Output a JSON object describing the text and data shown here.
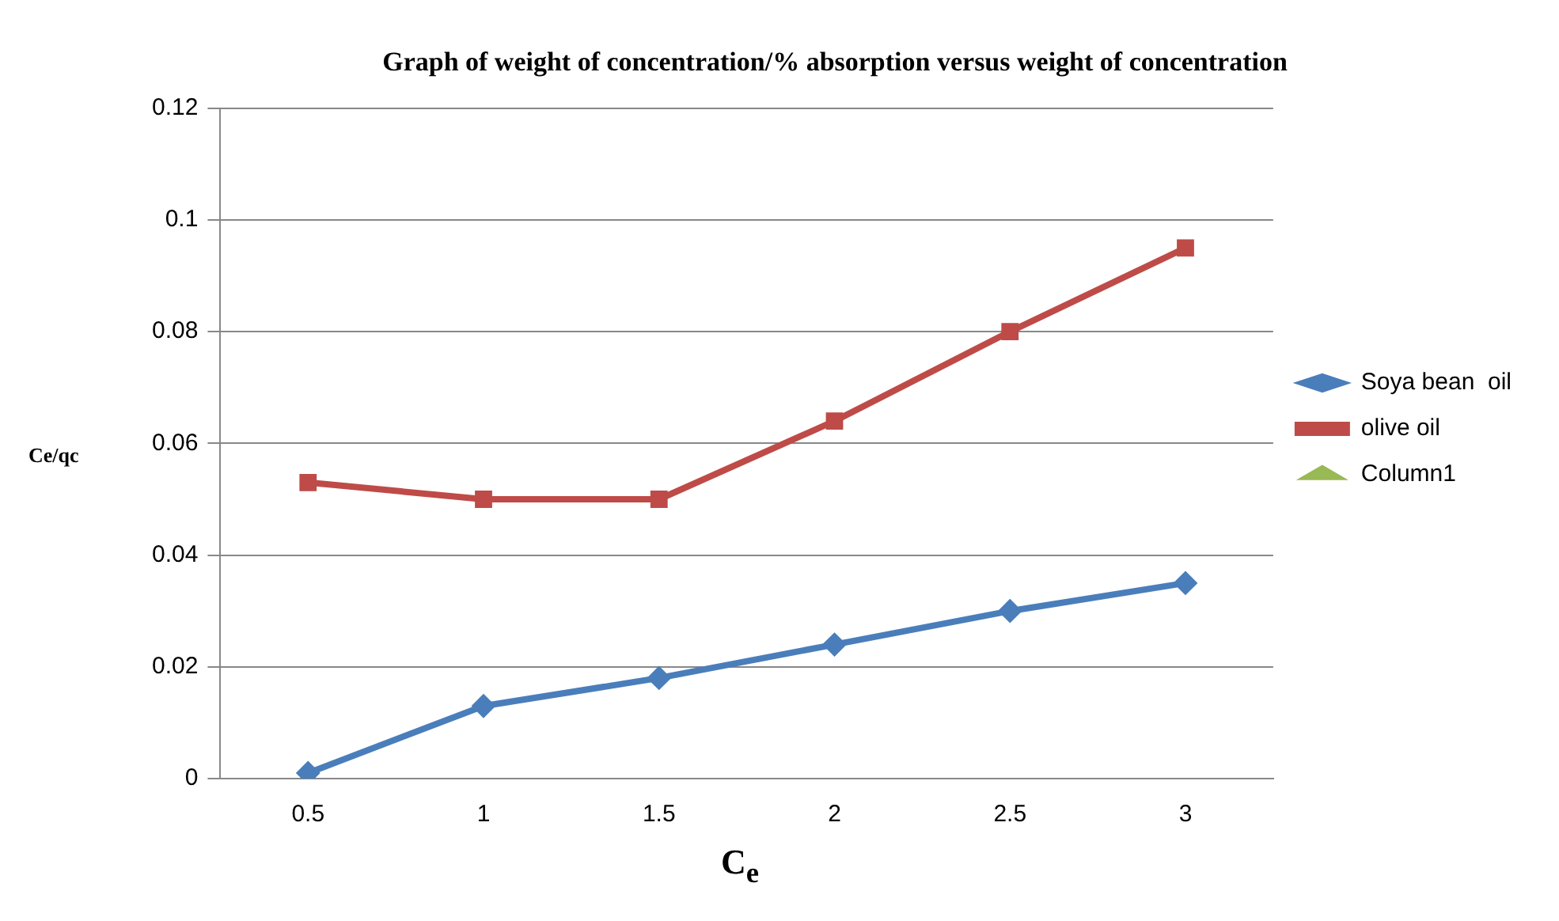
{
  "chart_data": {
    "type": "line",
    "title": "Graph of weight of concentration/% absorption versus weight of concentration",
    "xlabel": "C$_{e}$",
    "ylabel": "Ce/qc",
    "categories": [
      "0.5",
      "1",
      "1.5",
      "2",
      "2.5",
      "3"
    ],
    "series": [
      {
        "name": "Soya bean  oil",
        "color": "#4a7ebb",
        "marker": "diamond",
        "values": [
          0.001,
          0.013,
          0.018,
          0.024,
          0.03,
          0.035
        ]
      },
      {
        "name": "olive oil",
        "color": "#be4b48",
        "marker": "square",
        "values": [
          0.053,
          0.05,
          0.05,
          0.064,
          0.08,
          0.095
        ]
      },
      {
        "name": "Column1",
        "color": "#98b954",
        "marker": "triangle",
        "values": [
          null,
          null,
          null,
          null,
          null,
          null
        ]
      }
    ],
    "ylim": [
      0,
      0.12
    ],
    "yticks": [
      0,
      0.02,
      0.04,
      0.06,
      0.08,
      0.1,
      0.12
    ],
    "grid": "y",
    "legend": "right",
    "line_style": "solid"
  }
}
